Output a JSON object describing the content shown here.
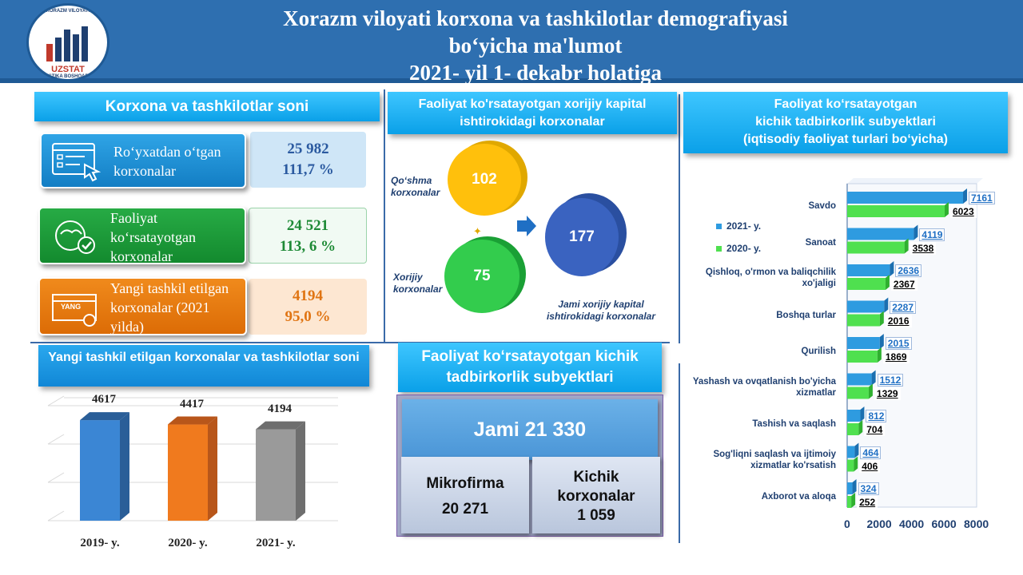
{
  "header": {
    "title_line1": "Xorazm viloyati korxona va tashkilotlar demografiyasi",
    "title_line2": "bo‘yicha ma'lumot",
    "title_line3": "2021- yil 1- dekabr holatiga",
    "logo_top_text": "XORAZM VILOYATI",
    "logo_brand": "UZSTAT",
    "logo_bottom_text": "STATISTIKA BOSHQARMASI"
  },
  "panel_count": {
    "title": "Korxona va tashkilotlar soni",
    "cards": [
      {
        "label": "Ro‘yxatdan o‘tgan korxonalar",
        "value": "25 982",
        "percent": "111,7 %",
        "color": "#1a8fd4"
      },
      {
        "label": "Faoliyat ko‘rsatayotgan korxonalar",
        "value": "24 521",
        "percent": "113, 6 %",
        "color": "#1e9a3a"
      },
      {
        "label": "Yangi tashkil etilgan korxonalar (2021 yilda)",
        "value": "4194",
        "percent": "95,0 %",
        "color": "#e87a0c",
        "icon_text": "YANG"
      }
    ]
  },
  "panel_foreign": {
    "title": "Faoliyat ko'rsatayotgan xorijiy kapital ishtirokidagi korxonalar",
    "joint_label": "Qo‘shma korxonalar",
    "joint_value": "102",
    "foreign_label": "Xorijiy korxonalar",
    "foreign_value": "75",
    "total_value": "177",
    "total_label": "Jami xorijiy kapital ishtirokidagi korxonalar"
  },
  "panel_new": {
    "title": "Yangi tashkil etilgan korxonalar va tashkilotlar soni"
  },
  "panel_small": {
    "title": "Faoliyat ko‘rsatayotgan kichik tadbirkorlik subyektlari",
    "total": "Jami 21 330",
    "micro_label": "Mikrofirma",
    "micro_value": "20 271",
    "small_label": "Kichik korxonalar",
    "small_value": "1 059"
  },
  "panel_activity": {
    "title_line1": "Faoliyat ko‘rsatayotgan",
    "title_line2": "kichik tadbirkorlik subyektlari",
    "title_line3": "(iqtisodiy  faoliyat  turlari  bo‘yicha)"
  },
  "chart_data": [
    {
      "type": "bar",
      "categories": [
        "2019- y.",
        "2020- y.",
        "2021- y."
      ],
      "values": [
        4617,
        4417,
        4194
      ],
      "colors": [
        "#3b86d4",
        "#f07a1e",
        "#9a9a9a"
      ],
      "title": "Yangi tashkil etilgan korxonalar va tashkilotlar soni",
      "grid": true
    },
    {
      "type": "bar",
      "orientation": "horizontal",
      "categories": [
        "Savdo",
        "Sanoat",
        "Qishloq, o'rmon va baliqchilik xo'jaligi",
        "Boshqa turlar",
        "Qurilish",
        "Yashash va ovqatlanish bo'yicha xizmatlar",
        "Tashish va saqlash",
        "Sog'liqni saqlash va ijtimoiy xizmatlar ko'rsatish",
        "Axborot va aloqa"
      ],
      "series": [
        {
          "name": "2021- y.",
          "values": [
            7161,
            4119,
            2636,
            2287,
            2015,
            1512,
            812,
            464,
            324
          ],
          "color": "#2e9be0"
        },
        {
          "name": "2020- y.",
          "values": [
            6023,
            3538,
            2367,
            2016,
            1869,
            1329,
            704,
            406,
            252
          ],
          "color": "#4fe04f"
        }
      ],
      "xticks": [
        "0",
        "2000",
        "4000",
        "6000",
        "8000"
      ],
      "xlim": [
        0,
        8000
      ],
      "legend_position": "left"
    }
  ]
}
